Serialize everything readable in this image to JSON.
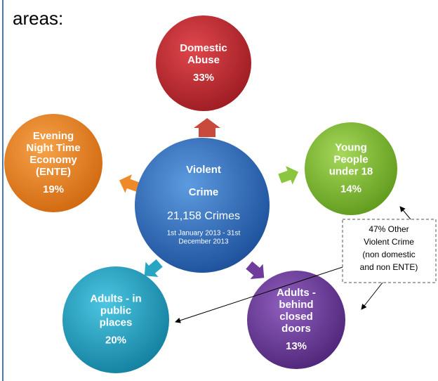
{
  "intro": "areas:",
  "center": {
    "title": [
      "Violent",
      "Crime"
    ],
    "count": "21,158 Crimes",
    "period": [
      "1st January 2013 - 31st",
      "December 2013"
    ]
  },
  "nodes": [
    {
      "label": [
        "Domestic",
        "Abuse"
      ],
      "percent": "33%"
    },
    {
      "label": [
        "Young",
        "People",
        "under 18"
      ],
      "percent": "14%"
    },
    {
      "label": [
        "Adults -",
        "behind",
        "closed",
        "doors"
      ],
      "percent": "13%"
    },
    {
      "label": [
        "Adults - in",
        "public",
        "places"
      ],
      "percent": "20%"
    },
    {
      "label": [
        "Evening",
        "Night Time",
        "Economy",
        "(ENTE)"
      ],
      "percent": "19%"
    }
  ],
  "callout": [
    "47% Other",
    "Violent Crime",
    "(non domestic",
    "and non ENTE)"
  ]
}
